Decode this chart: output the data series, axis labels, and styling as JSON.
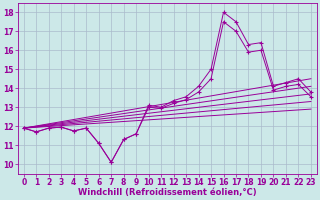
{
  "xlabel": "Windchill (Refroidissement éolien,°C)",
  "background_color": "#cce8e8",
  "grid_color": "#aabbcc",
  "line_color": "#990099",
  "xlim": [
    -0.5,
    23.5
  ],
  "ylim": [
    9.5,
    18.5
  ],
  "xticks": [
    0,
    1,
    2,
    3,
    4,
    5,
    6,
    7,
    8,
    9,
    10,
    11,
    12,
    13,
    14,
    15,
    16,
    17,
    18,
    19,
    20,
    21,
    22,
    23
  ],
  "yticks": [
    10,
    11,
    12,
    13,
    14,
    15,
    16,
    17,
    18
  ],
  "data_curves": [
    {
      "x": [
        0,
        1,
        2,
        3,
        4,
        5,
        6,
        7,
        8,
        9,
        10,
        11,
        12,
        13,
        14,
        15,
        16,
        17,
        18,
        19,
        20,
        21,
        22,
        23
      ],
      "y": [
        11.9,
        11.7,
        11.9,
        11.95,
        11.75,
        11.9,
        11.1,
        10.1,
        11.3,
        11.6,
        13.1,
        13.0,
        13.35,
        13.55,
        14.1,
        15.0,
        18.0,
        17.5,
        16.3,
        16.4,
        14.1,
        14.3,
        14.5,
        13.8
      ]
    },
    {
      "x": [
        0,
        1,
        2,
        3,
        4,
        5,
        6,
        7,
        8,
        9,
        10,
        11,
        12,
        13,
        14,
        15,
        16,
        17,
        18,
        19,
        20,
        21,
        22,
        23
      ],
      "y": [
        11.9,
        11.7,
        11.9,
        11.95,
        11.75,
        11.9,
        11.1,
        10.1,
        11.3,
        11.6,
        13.0,
        12.95,
        13.2,
        13.4,
        13.8,
        14.5,
        17.5,
        17.0,
        15.9,
        16.0,
        13.9,
        14.1,
        14.2,
        13.55
      ]
    }
  ],
  "ref_lines": [
    {
      "x0": 0,
      "y0": 11.9,
      "x1": 23,
      "y1": 14.5
    },
    {
      "x0": 0,
      "y0": 11.9,
      "x1": 23,
      "y1": 14.1
    },
    {
      "x0": 0,
      "y0": 11.9,
      "x1": 23,
      "y1": 13.7
    },
    {
      "x0": 0,
      "y0": 11.9,
      "x1": 23,
      "y1": 13.3
    },
    {
      "x0": 0,
      "y0": 11.9,
      "x1": 23,
      "y1": 12.9
    }
  ],
  "marker": "+",
  "markersize": 3.0,
  "linewidth": 0.7,
  "xlabel_fontsize": 6,
  "tick_fontsize": 5.5
}
